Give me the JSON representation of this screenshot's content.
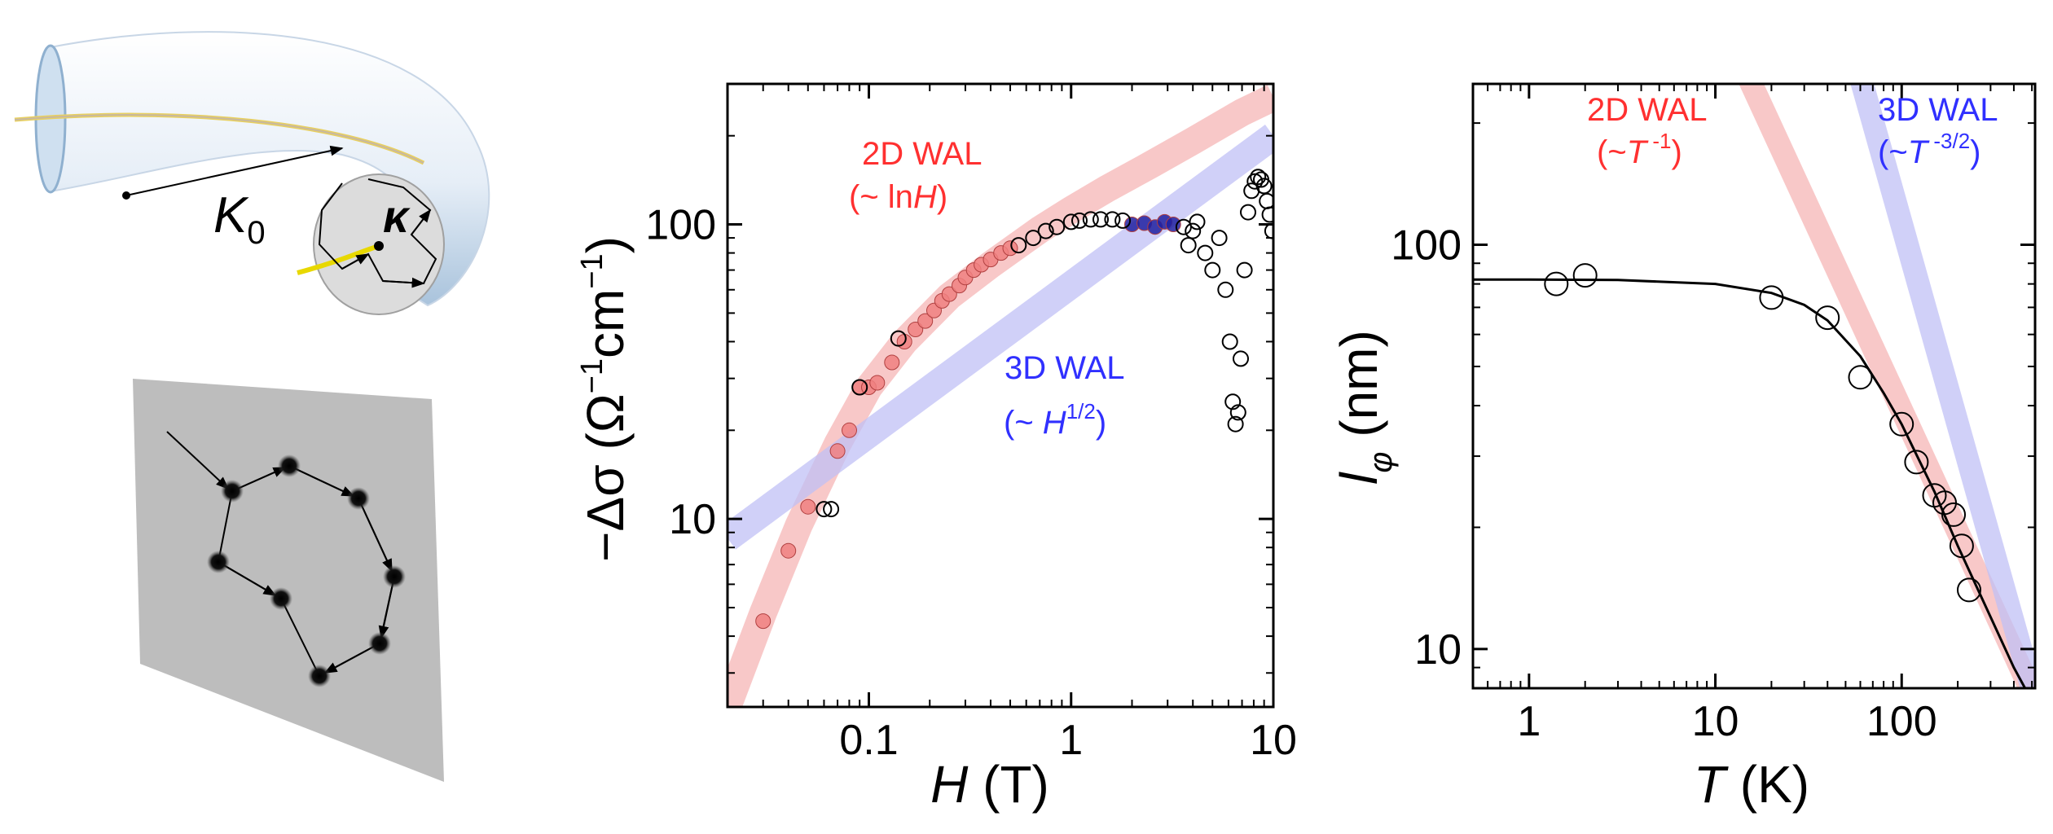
{
  "schematic": {
    "tube_radius_label_main": "K",
    "tube_radius_label_sub": "0",
    "cross_section_label": "κ"
  },
  "chart_data": [
    {
      "type": "scatter",
      "name": "magnetoconductance",
      "xscale": "log",
      "yscale": "log",
      "xlim": [
        0.02,
        10
      ],
      "ylim": [
        2.3,
        300
      ],
      "xticks": [
        {
          "value": 0.1,
          "label": "0.1"
        },
        {
          "value": 1,
          "label": "1"
        },
        {
          "value": 10,
          "label": "10"
        }
      ],
      "yticks": [
        {
          "value": 10,
          "label": "10"
        },
        {
          "value": 100,
          "label": "100"
        }
      ],
      "xlabel": {
        "main": "H",
        "unit": " (T)"
      },
      "ylabel": {
        "main": "−Δσ (Ω",
        "sup1": "−1",
        "mid": "cm",
        "sup2": "−1",
        "end": ")"
      },
      "series": [
        {
          "name": "2D WAL fit (~ lnH)",
          "role": "fit-band",
          "color": "#f5b5b5",
          "x": [
            0.02,
            0.03,
            0.045,
            0.07,
            0.1,
            0.15,
            0.25,
            0.4,
            0.7,
            1,
            1.5,
            2.5,
            4,
            7,
            10
          ],
          "y": [
            2.3,
            4.8,
            9.5,
            18,
            28,
            40,
            57,
            73,
            96,
            112,
            132,
            160,
            192,
            240,
            270
          ]
        },
        {
          "name": "3D WAL fit (~ H^1/2)",
          "role": "fit-band",
          "color": "#c0c0f5",
          "x": [
            0.02,
            10
          ],
          "y": [
            8.6,
            200
          ]
        },
        {
          "name": "data (low field, fitted)",
          "role": "points",
          "color": "#f08080",
          "x": [
            0.03,
            0.04,
            0.05,
            0.07,
            0.08,
            0.09,
            0.1,
            0.11,
            0.13,
            0.15,
            0.17,
            0.19,
            0.21,
            0.23,
            0.25,
            0.28,
            0.3,
            0.33,
            0.36,
            0.4,
            0.45,
            0.5
          ],
          "y": [
            4.5,
            7.8,
            11,
            17,
            20,
            28,
            28,
            29,
            34,
            40,
            44,
            47,
            51,
            55,
            58,
            62,
            66,
            70,
            73,
            76,
            80,
            83
          ]
        },
        {
          "name": "data (high field, 3D regime)",
          "role": "points",
          "color": "#2020a0",
          "x": [
            2.0,
            2.3,
            2.6,
            2.9,
            3.2
          ],
          "y": [
            100,
            101,
            98,
            102,
            100
          ]
        },
        {
          "name": "data (open circles)",
          "role": "open-points",
          "color": "#000000",
          "x": [
            0.06,
            0.065,
            0.09,
            0.14,
            0.55,
            0.65,
            0.75,
            0.85,
            1.0,
            1.1,
            1.25,
            1.4,
            1.6,
            1.8,
            3.6,
            3.8,
            4.0,
            4.2,
            4.6,
            5.0,
            5.4,
            5.8,
            6.1,
            6.3,
            6.5,
            6.7,
            6.9,
            7.2,
            7.5,
            7.8,
            8.1,
            8.4,
            8.7,
            9.0,
            9.3,
            9.6,
            9.9
          ],
          "y": [
            10.8,
            10.8,
            28,
            41,
            85,
            90,
            95,
            98,
            102,
            103,
            104,
            104,
            104,
            103,
            98,
            85,
            95,
            102,
            80,
            70,
            90,
            60,
            40,
            25,
            21,
            23,
            35,
            70,
            110,
            130,
            140,
            145,
            142,
            135,
            120,
            108,
            95
          ]
        }
      ],
      "annotations": [
        {
          "text": "2D WAL",
          "color": "#ff3030"
        },
        {
          "text_pre": "(~ ln",
          "text_it": "H",
          "text_post": ")",
          "color": "#ff3030"
        },
        {
          "text": "3D WAL",
          "color": "#3030ff"
        },
        {
          "text_pre": "(~ ",
          "text_it": "H",
          "text_sup": "1/2",
          "text_post": ")",
          "color": "#3030ff"
        }
      ]
    },
    {
      "type": "scatter",
      "name": "dephasing-length",
      "xscale": "log",
      "yscale": "log",
      "xlim": [
        0.5,
        520
      ],
      "ylim": [
        8,
        250
      ],
      "xticks": [
        {
          "value": 1,
          "label": "1"
        },
        {
          "value": 10,
          "label": "10"
        },
        {
          "value": 100,
          "label": "100"
        }
      ],
      "yticks": [
        {
          "value": 10,
          "label": "10"
        },
        {
          "value": 100,
          "label": "100"
        }
      ],
      "xlabel": {
        "main": "T",
        "unit": " (K)"
      },
      "ylabel": {
        "main": "l",
        "sub": "φ",
        "unit": " (nm)"
      },
      "series": [
        {
          "name": "2D WAL (~T^-1)",
          "role": "fit-band",
          "color": "#f5b5b5",
          "x": [
            15,
            520
          ],
          "y": [
            260,
            7.5
          ]
        },
        {
          "name": "3D WAL (~T^-3/2)",
          "role": "fit-band",
          "color": "#c0c0f5",
          "x": [
            60,
            520
          ],
          "y": [
            260,
            7.5
          ]
        },
        {
          "name": "data",
          "role": "open-points",
          "color": "#000000",
          "x": [
            1.4,
            2,
            20,
            40,
            60,
            100,
            120,
            150,
            170,
            190,
            210,
            230
          ],
          "y": [
            80,
            84,
            74,
            66,
            47,
            36,
            29,
            24,
            23,
            21.5,
            18,
            14
          ]
        },
        {
          "name": "fit",
          "role": "line",
          "color": "#000000",
          "x": [
            0.5,
            1,
            3,
            10,
            20,
            30,
            40,
            60,
            80,
            100,
            150,
            200,
            300,
            400,
            520
          ],
          "y": [
            82,
            82,
            81.8,
            80,
            76,
            71,
            65,
            53,
            43,
            36,
            24.5,
            18,
            12,
            9,
            7.2
          ]
        }
      ],
      "annotations": [
        {
          "text": "2D WAL",
          "color": "#ff3030"
        },
        {
          "text_pre": "(~",
          "text_it": "T",
          "text_sup": " -1",
          "text_post": ")",
          "color": "#ff3030"
        },
        {
          "text": "3D WAL",
          "color": "#3030ff"
        },
        {
          "text_pre": "(~",
          "text_it": "T",
          "text_sup": " -3/2",
          "text_post": ")",
          "color": "#3030ff"
        }
      ]
    }
  ]
}
